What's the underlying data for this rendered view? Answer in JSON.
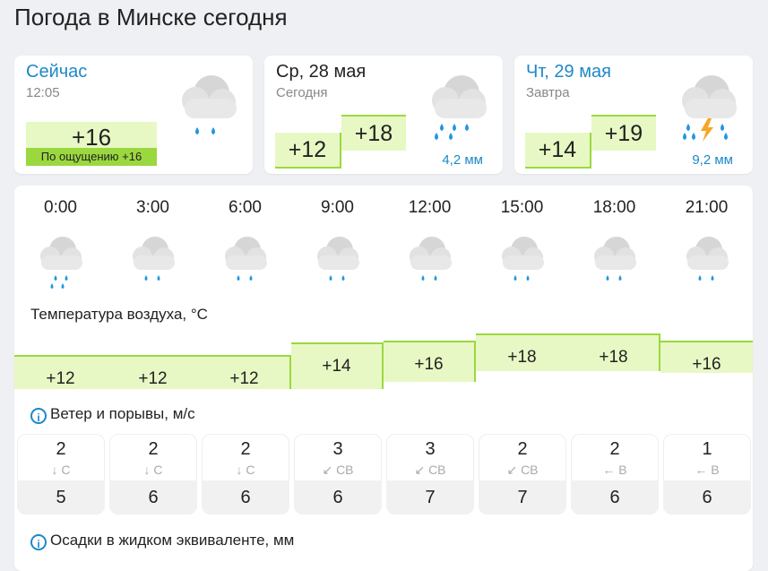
{
  "title": "Погода в Минске сегодня",
  "now": {
    "label": "Сейчас",
    "time": "12:05",
    "temp": "+16",
    "feels": "По ощущению +16",
    "icon": "cloud-rain-icon"
  },
  "wed": {
    "label": "Ср, 28 мая",
    "sub": "Сегодня",
    "temp_low": "+12",
    "temp_high": "+18",
    "precip": "4,2 мм",
    "icon": "cloud-rain-icon"
  },
  "thu": {
    "label": "Чт, 29 мая",
    "sub": "Завтра",
    "temp_low": "+14",
    "temp_high": "+19",
    "precip": "9,2 мм",
    "icon": "cloud-thunderstorm-icon"
  },
  "hours": [
    "0:00",
    "3:00",
    "6:00",
    "9:00",
    "12:00",
    "15:00",
    "18:00",
    "21:00"
  ],
  "temp_label": "Температура воздуха, °C",
  "temps": [
    "+12",
    "+12",
    "+12",
    "+14",
    "+16",
    "+18",
    "+18",
    "+16"
  ],
  "wind_label": "Ветер и порывы, м/с",
  "wind": [
    {
      "speed": "2",
      "dir": "↓ С",
      "gust": "5"
    },
    {
      "speed": "2",
      "dir": "↓ С",
      "gust": "6"
    },
    {
      "speed": "2",
      "dir": "↓ С",
      "gust": "6"
    },
    {
      "speed": "3",
      "dir": "↙ СВ",
      "gust": "6"
    },
    {
      "speed": "3",
      "dir": "↙ СВ",
      "gust": "7"
    },
    {
      "speed": "2",
      "dir": "↙ СВ",
      "gust": "7"
    },
    {
      "speed": "2",
      "dir": "← В",
      "gust": "6"
    },
    {
      "speed": "1",
      "dir": "← В",
      "gust": "6"
    }
  ],
  "precip_label": "Осадки в жидком эквиваленте, мм",
  "colors": {
    "accent": "#1e88c8",
    "temp_fill": "#e7f8c4",
    "temp_line": "#9bd83f"
  }
}
